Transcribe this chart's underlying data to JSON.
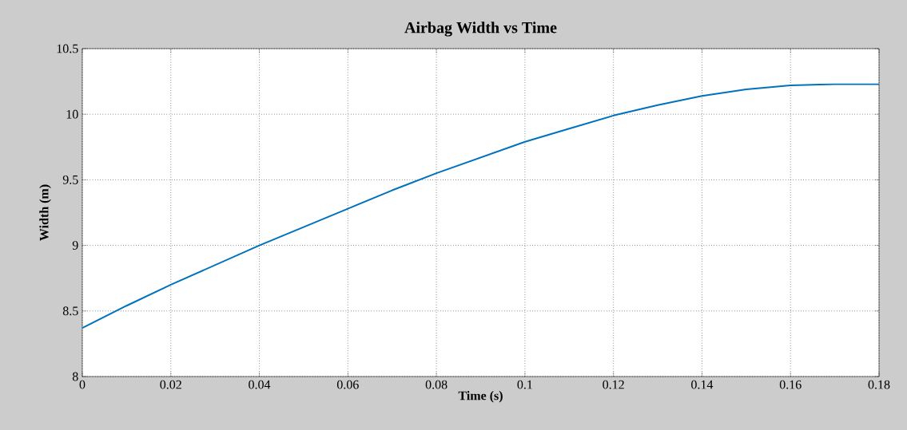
{
  "chart_data": {
    "type": "line",
    "title": "Airbag Width vs Time",
    "xlabel": "Time (s)",
    "ylabel": "Width (m)",
    "x": [
      0,
      0.01,
      0.02,
      0.03,
      0.04,
      0.05,
      0.06,
      0.07,
      0.08,
      0.09,
      0.1,
      0.11,
      0.12,
      0.13,
      0.14,
      0.15,
      0.16,
      0.17,
      0.18
    ],
    "series": [
      {
        "color": "#0072bd",
        "values": [
          8.37,
          8.54,
          8.7,
          8.85,
          9.0,
          9.14,
          9.28,
          9.42,
          9.55,
          9.67,
          9.79,
          9.89,
          9.99,
          10.07,
          10.14,
          10.19,
          10.22,
          10.23,
          10.23
        ]
      }
    ],
    "xlim": [
      0,
      0.18
    ],
    "ylim": [
      8,
      10.5
    ],
    "xticks": [
      0,
      0.02,
      0.04,
      0.06,
      0.08,
      0.1,
      0.12,
      0.14,
      0.16,
      0.18
    ],
    "yticks": [
      8,
      8.5,
      9,
      9.5,
      10,
      10.5
    ],
    "grid": true
  }
}
